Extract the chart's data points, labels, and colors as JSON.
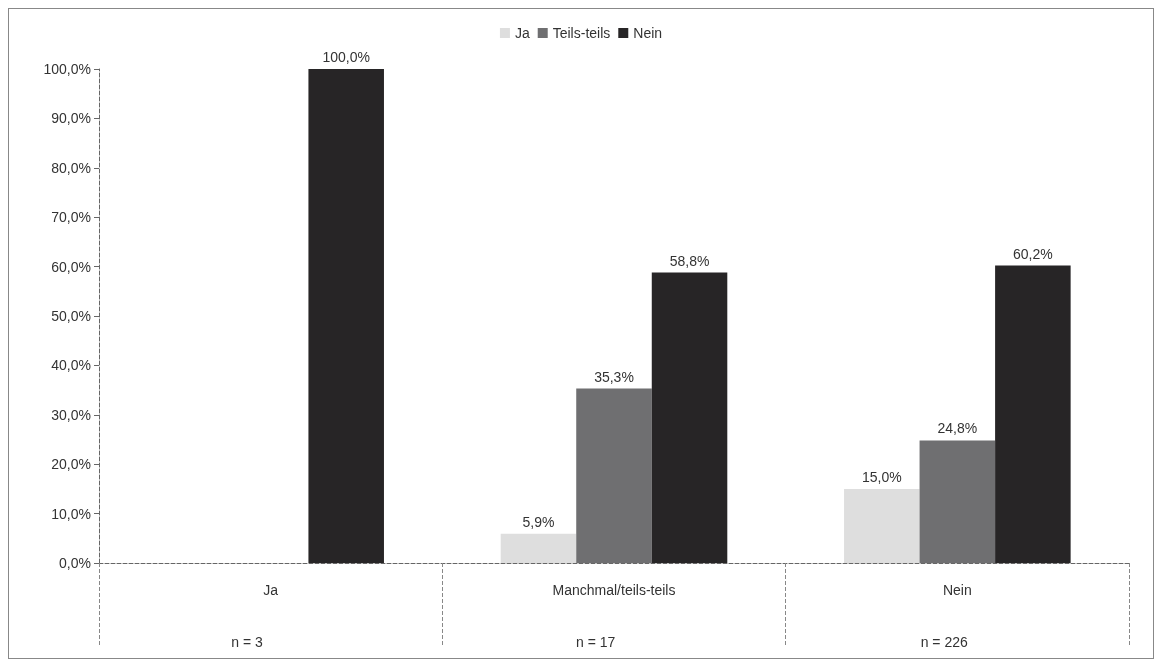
{
  "chart_data": {
    "type": "bar",
    "categories": [
      "Ja",
      "Manchmal/teils-teils",
      "Nein"
    ],
    "series": [
      {
        "name": "Ja",
        "color": "#dedede",
        "values": [
          null,
          5.9,
          15.0
        ],
        "value_labels": [
          null,
          "5,9%",
          "15,0%"
        ]
      },
      {
        "name": "Teils-teils",
        "color": "#6f6f71",
        "values": [
          null,
          35.3,
          24.8
        ],
        "value_labels": [
          null,
          "35,3%",
          "24,8%"
        ]
      },
      {
        "name": "Nein",
        "color": "#272526",
        "values": [
          100.0,
          58.8,
          60.2
        ],
        "value_labels": [
          "100,0%",
          "58,8%",
          "60,2%"
        ]
      }
    ],
    "ylim": [
      0,
      100
    ],
    "yticks": [
      {
        "value": 0,
        "label": "0,0%"
      },
      {
        "value": 10,
        "label": "10,0%"
      },
      {
        "value": 20,
        "label": "20,0%"
      },
      {
        "value": 30,
        "label": "30,0%"
      },
      {
        "value": 40,
        "label": "40,0%"
      },
      {
        "value": 50,
        "label": "50,0%"
      },
      {
        "value": 60,
        "label": "60,0%"
      },
      {
        "value": 70,
        "label": "70,0%"
      },
      {
        "value": 80,
        "label": "80,0%"
      },
      {
        "value": 90,
        "label": "90,0%"
      },
      {
        "value": 100,
        "label": "100,0%"
      }
    ],
    "annotations": [
      "n = 3",
      "n = 17",
      "n = 226"
    ],
    "legend": "top",
    "grid": false
  }
}
